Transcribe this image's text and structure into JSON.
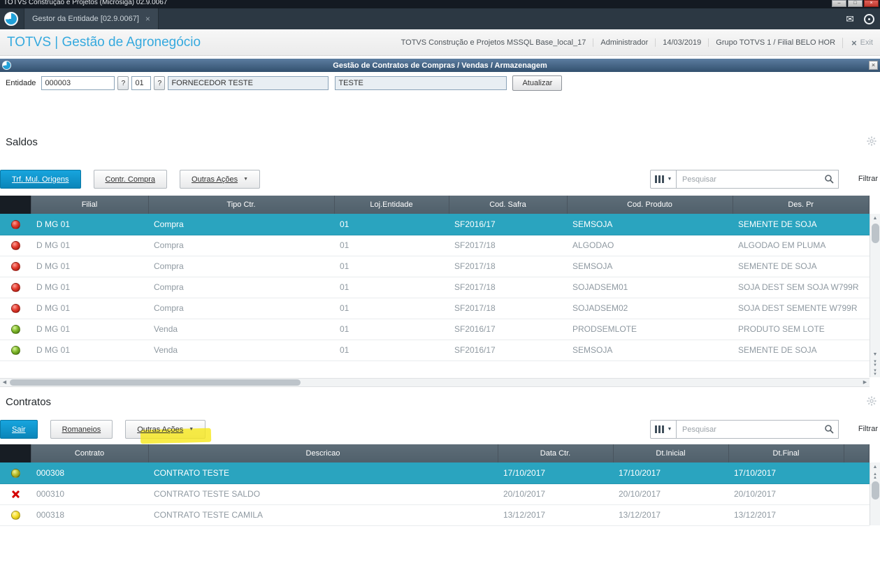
{
  "os": {
    "title": "TOTVS Construção e Projetos (Microsiga) 02.9.0067"
  },
  "icons": {
    "close": "×",
    "minimize": "–",
    "maximize": "□",
    "mail": "✉",
    "dropdown": "▼",
    "up": "▲",
    "down": "▼",
    "left": "◀",
    "right": "▶",
    "lookup": "?"
  },
  "tabbar": {
    "tab_label": "Gestor da Entidade [02.9.0067]"
  },
  "header": {
    "brand": "TOTVS | Gestão de Agronegócio",
    "info": {
      "base": "TOTVS Construção e Projetos MSSQL Base_local_17",
      "user": "Administrador",
      "date": "14/03/2019",
      "branch": "Grupo TOTVS 1 / Filial BELO HOR"
    },
    "exit_label": "Exit"
  },
  "dialog": {
    "title": "Gestão de Contratos de Compras / Vendas / Armazenagem"
  },
  "form": {
    "entity_label": "Entidade",
    "entity_code": "000003",
    "store_code": "01",
    "entity_name": "FORNECEDOR TESTE",
    "entity_short_name": "TESTE",
    "refresh_label": "Atualizar"
  },
  "saldos": {
    "title": "Saldos",
    "toolbar": {
      "primary": "Trf. Mul. Origens",
      "secondary": "Contr. Compra",
      "more": "Outras Ações",
      "search_placeholder": "Pesquisar",
      "filter": "Filtrar"
    },
    "grid": {
      "headers": [
        "",
        "Filial",
        "Tipo Ctr.",
        "Loj.Entidade",
        "Cod. Safra",
        "Cod. Produto",
        "Des. Pr"
      ],
      "rows": [
        {
          "status": "red",
          "selected": true,
          "cells": [
            "D MG 01",
            "Compra",
            "01",
            "SF2016/17",
            "SEMSOJA",
            "SEMENTE DE SOJA"
          ]
        },
        {
          "status": "red",
          "selected": false,
          "cells": [
            "D MG 01",
            "Compra",
            "01",
            "SF2017/18",
            "ALGODAO",
            "ALGODAO EM PLUMA"
          ]
        },
        {
          "status": "red",
          "selected": false,
          "cells": [
            "D MG 01",
            "Compra",
            "01",
            "SF2017/18",
            "SEMSOJA",
            "SEMENTE DE SOJA"
          ]
        },
        {
          "status": "red",
          "selected": false,
          "cells": [
            "D MG 01",
            "Compra",
            "01",
            "SF2017/18",
            "SOJADSEM01",
            "SOJA DEST SEM SOJA W799R"
          ]
        },
        {
          "status": "red",
          "selected": false,
          "cells": [
            "D MG 01",
            "Compra",
            "01",
            "SF2017/18",
            "SOJADSEM02",
            "SOJA DEST SEMENTE W799R"
          ]
        },
        {
          "status": "green",
          "selected": false,
          "cells": [
            "D MG 01",
            "Venda",
            "01",
            "SF2016/17",
            "PRODSEMLOTE",
            "PRODUTO SEM LOTE"
          ]
        },
        {
          "status": "green",
          "selected": false,
          "cells": [
            "D MG 01",
            "Venda",
            "01",
            "SF2016/17",
            "SEMSOJA",
            "SEMENTE DE SOJA"
          ]
        }
      ]
    }
  },
  "contratos": {
    "title": "Contratos",
    "toolbar": {
      "primary": "Sair",
      "secondary": "Romaneios",
      "more": "Outras Ações",
      "search_placeholder": "Pesquisar",
      "filter": "Filtrar"
    },
    "grid": {
      "headers": [
        "",
        "Contrato",
        "Descricao",
        "Data Ctr.",
        "Dt.Inicial",
        "Dt.Final",
        ""
      ],
      "rows": [
        {
          "status": "olive",
          "selected": true,
          "cells": [
            "000308",
            "CONTRATO TESTE",
            "17/10/2017",
            "17/10/2017",
            "17/10/2017"
          ]
        },
        {
          "status": "red-x",
          "selected": false,
          "cells": [
            "000310",
            "CONTRATO TESTE SALDO",
            "20/10/2017",
            "20/10/2017",
            "20/10/2017"
          ]
        },
        {
          "status": "yellow",
          "selected": false,
          "cells": [
            "000318",
            "CONTRATO TESTE CAMILA",
            "13/12/2017",
            "13/12/2017",
            "13/12/2017"
          ]
        }
      ]
    }
  },
  "colors": {
    "selection": "#2aa4bf",
    "primary_button": "#0f9cd8",
    "grid_header": "#57656f",
    "highlight": "#f6e71a"
  }
}
